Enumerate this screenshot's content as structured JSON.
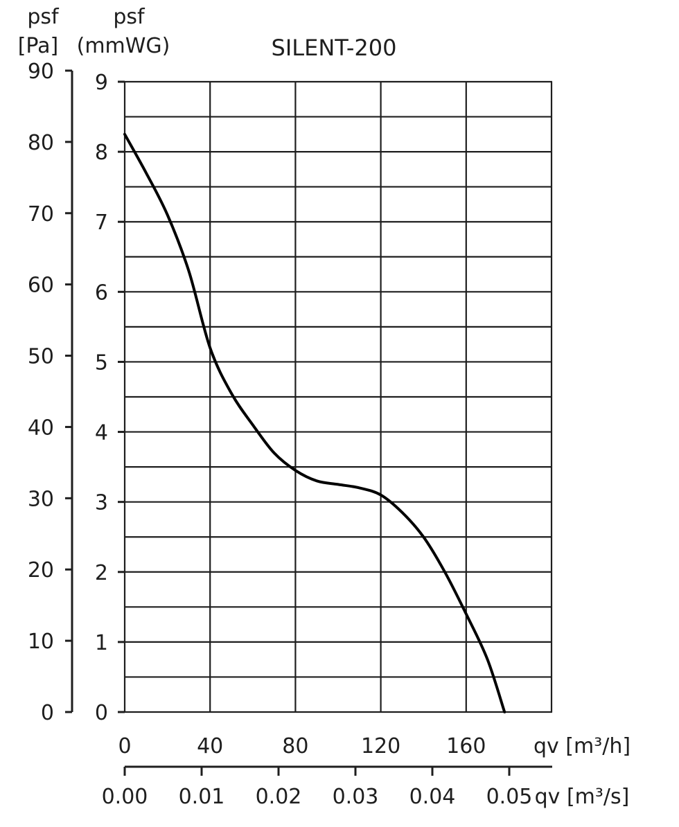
{
  "chart_data": {
    "type": "line",
    "title": "SILENT-200",
    "y_axes": [
      {
        "id": "pa",
        "symbol": "psf",
        "unit": "[Pa]",
        "ticks": [
          "0",
          "10",
          "20",
          "30",
          "40",
          "50",
          "60",
          "70",
          "80",
          "90"
        ],
        "range": [
          0,
          90
        ]
      },
      {
        "id": "mmwg",
        "symbol": "psf",
        "unit": "(mmWG)",
        "ticks": [
          "0",
          "1",
          "2",
          "3",
          "4",
          "5",
          "6",
          "7",
          "8",
          "9"
        ],
        "range": [
          0,
          9
        ]
      }
    ],
    "x_axes": [
      {
        "id": "m3h",
        "label": "qv [m³/h]",
        "ticks": [
          "0",
          "40",
          "80",
          "120",
          "160"
        ],
        "range": [
          0,
          200
        ]
      },
      {
        "id": "m3s",
        "label": "qv [m³/s]",
        "ticks": [
          "0.00",
          "0.01",
          "0.02",
          "0.03",
          "0.04",
          "0.05"
        ],
        "range": [
          0,
          0.0556
        ]
      }
    ],
    "grid": true,
    "series": [
      {
        "x_unit": "m3/h",
        "y_unit": "mmWG",
        "points": [
          [
            0,
            8.25
          ],
          [
            10,
            7.7
          ],
          [
            20,
            7.1
          ],
          [
            30,
            6.3
          ],
          [
            40,
            5.2
          ],
          [
            50,
            4.55
          ],
          [
            60,
            4.1
          ],
          [
            70,
            3.7
          ],
          [
            80,
            3.45
          ],
          [
            90,
            3.3
          ],
          [
            100,
            3.25
          ],
          [
            110,
            3.2
          ],
          [
            120,
            3.1
          ],
          [
            130,
            2.85
          ],
          [
            140,
            2.5
          ],
          [
            150,
            2.0
          ],
          [
            160,
            1.4
          ],
          [
            170,
            0.75
          ],
          [
            178,
            0.0
          ]
        ]
      }
    ],
    "line_color": "#000000",
    "grid_color": "#1e1e1e"
  }
}
